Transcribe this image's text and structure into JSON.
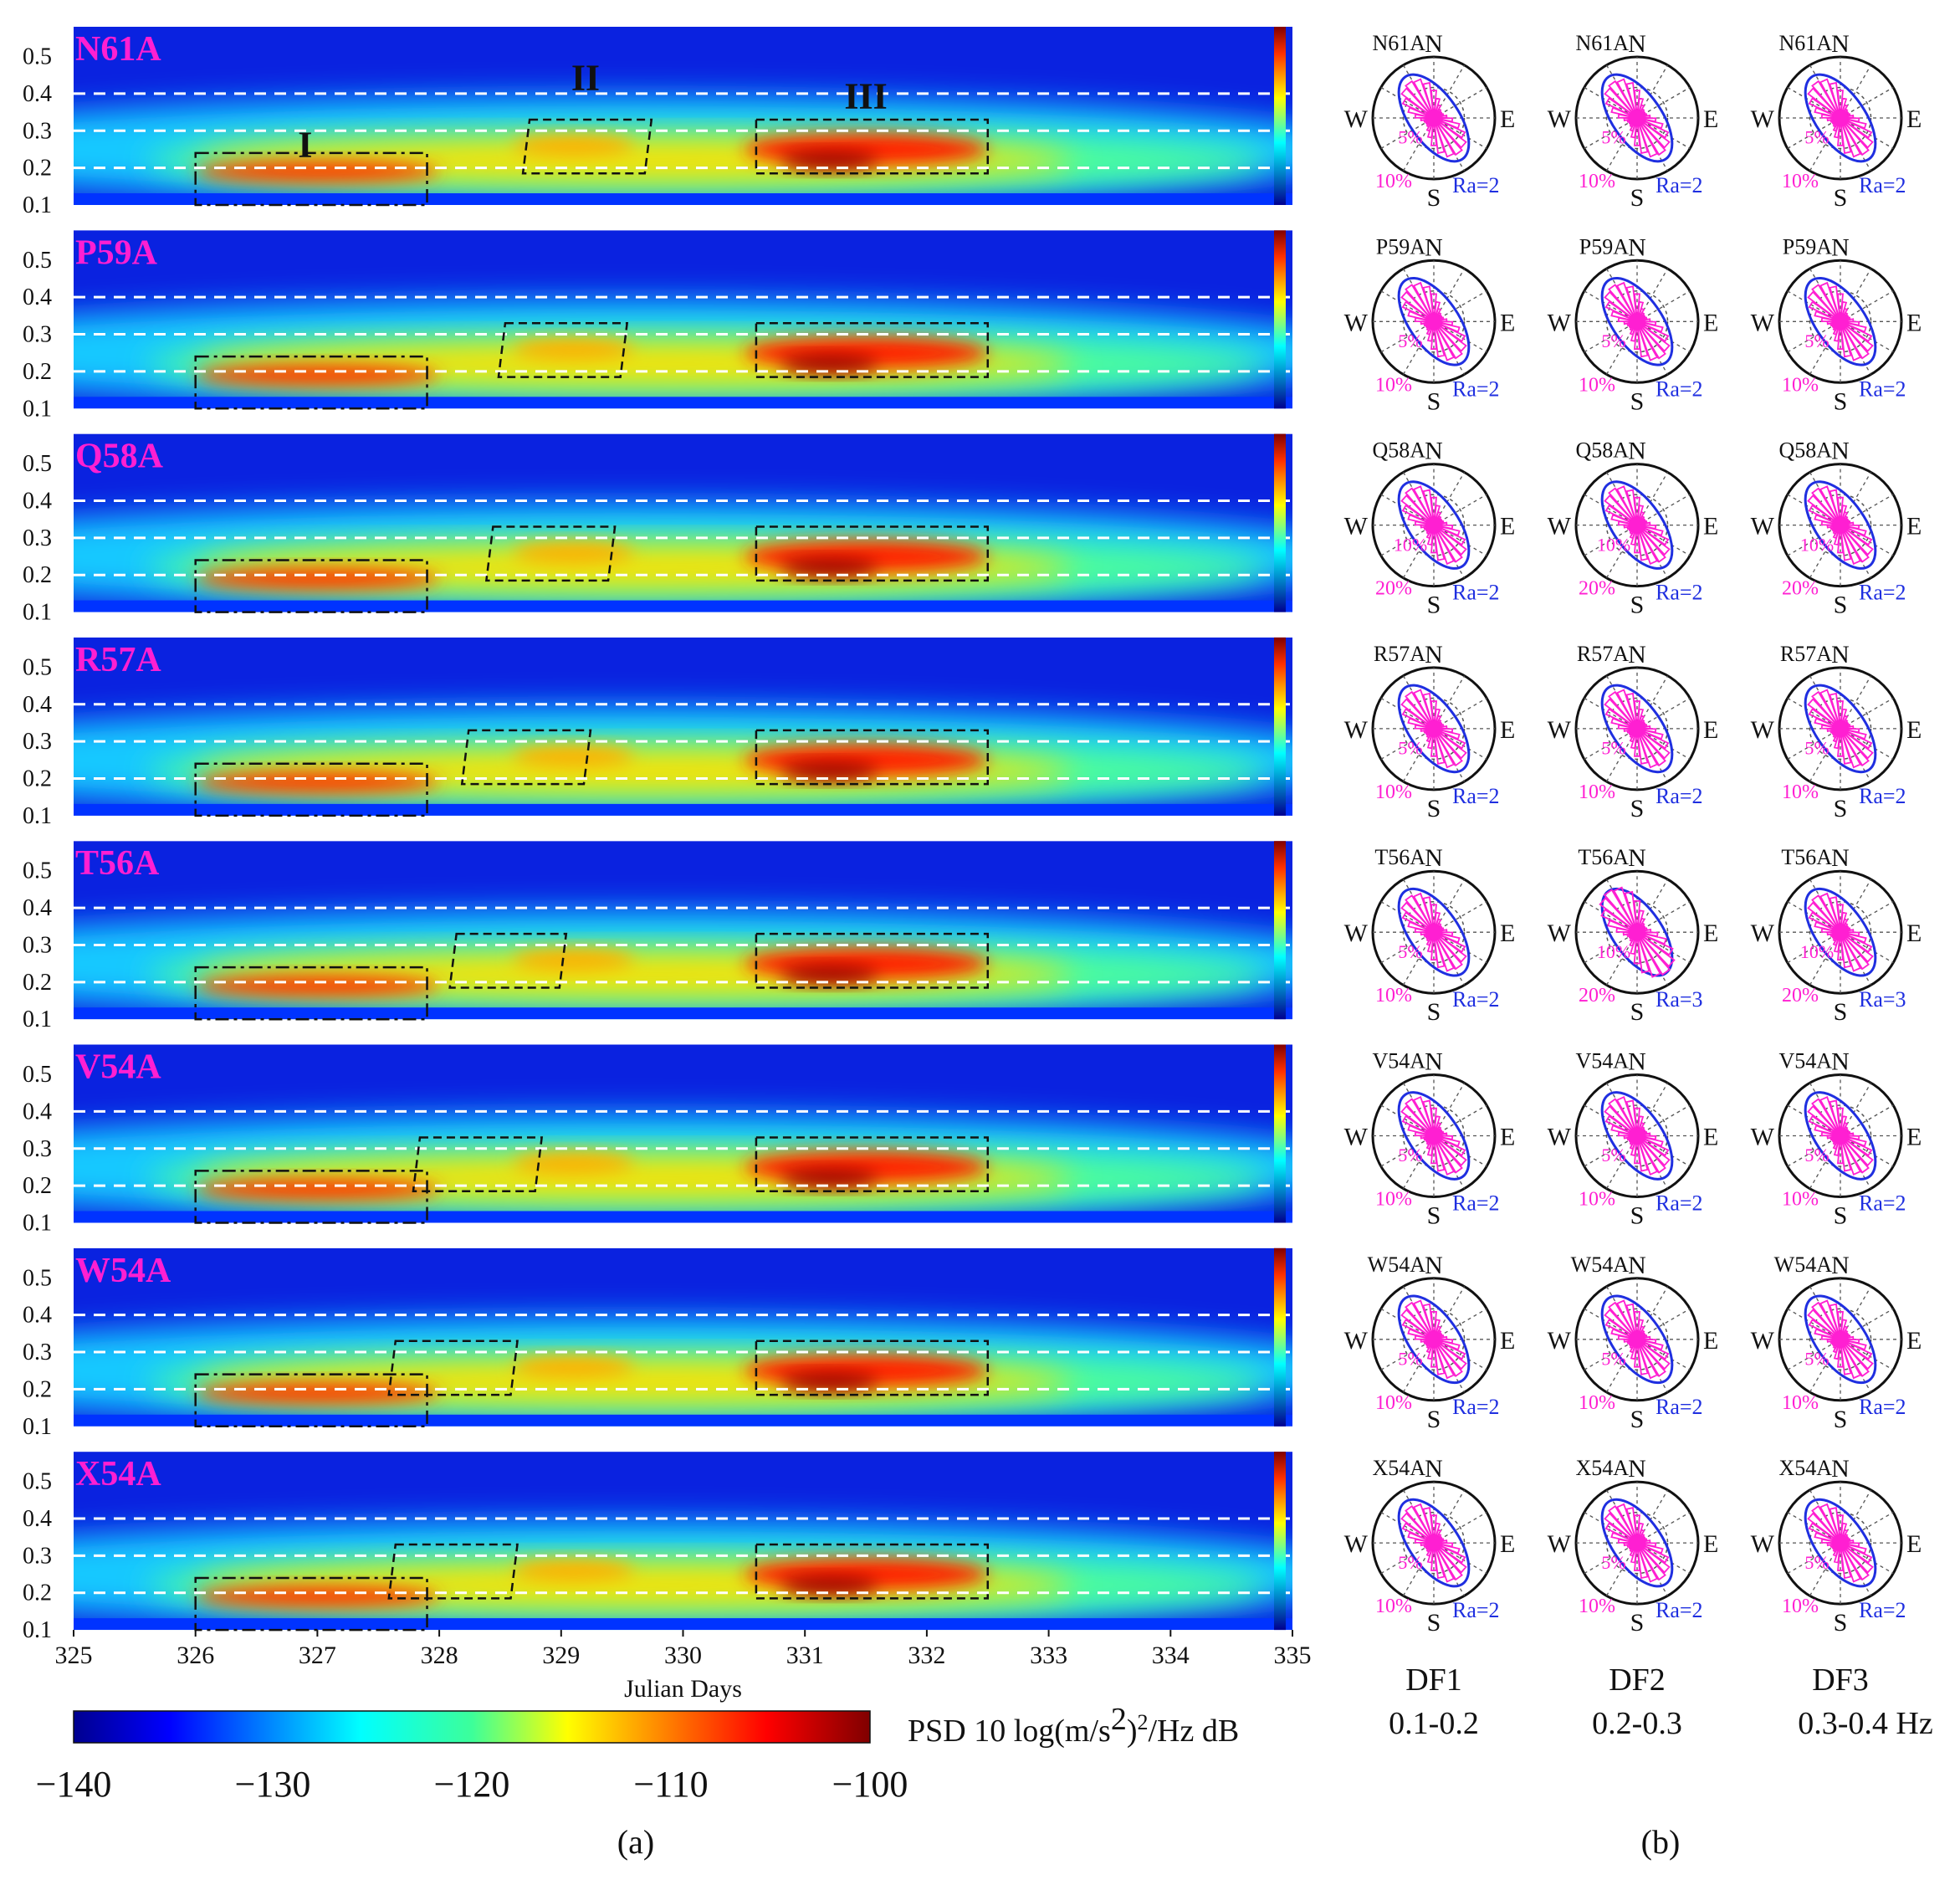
{
  "chart_data": {
    "type": "heatmap",
    "panel_a": {
      "label": "(a)",
      "xlabel": "Julian Days",
      "x_ticks": [
        "325",
        "326",
        "327",
        "328",
        "329",
        "330",
        "331",
        "332",
        "333",
        "334",
        "335"
      ],
      "xlim": [
        325,
        335
      ],
      "ylim": [
        0.1,
        0.58
      ],
      "y_ticks": [
        "0.5",
        "0.4",
        "0.3",
        "0.2",
        "0.1"
      ],
      "guide_lines_hz": [
        0.2,
        0.3,
        0.4
      ],
      "stations": [
        "N61A",
        "P59A",
        "Q58A",
        "R57A",
        "T56A",
        "V54A",
        "W54A",
        "X54A"
      ],
      "colorbar": {
        "min": -140,
        "max": -100,
        "tick_labels": [
          "−140",
          "−130",
          "−120",
          "−110",
          "−100"
        ],
        "label_main": "PSD 10 log(m/s",
        "label_sup": "2",
        "label_tail": ")",
        "label_sup2": "2",
        "label_end": "/Hz dB"
      },
      "band_labels": [
        "I",
        "II",
        "III"
      ],
      "boxes": [
        {
          "station": "N61A",
          "II": [
            328.7,
            329.7
          ],
          "III": [
            330.6,
            332.5
          ]
        },
        {
          "station": "P59A",
          "II": [
            328.5,
            329.5
          ],
          "III": [
            330.6,
            332.5
          ]
        },
        {
          "station": "Q58A",
          "II": [
            328.4,
            329.4
          ],
          "III": [
            330.6,
            332.5
          ]
        },
        {
          "station": "R57A",
          "II": [
            328.2,
            329.2
          ],
          "III": [
            330.6,
            332.5
          ]
        },
        {
          "station": "T56A",
          "II": [
            328.1,
            329.0
          ],
          "III": [
            330.6,
            332.5
          ]
        },
        {
          "station": "V54A",
          "II": [
            327.8,
            328.8
          ],
          "III": [
            330.6,
            332.5
          ]
        },
        {
          "station": "W54A",
          "II": [
            327.6,
            328.6
          ],
          "III": [
            330.6,
            332.5
          ]
        },
        {
          "station": "X54A",
          "II": [
            327.6,
            328.6
          ],
          "III": [
            330.6,
            332.5
          ]
        }
      ],
      "band_I_days": [
        326.0,
        327.9
      ]
    },
    "panel_b": {
      "label": "(b)",
      "columns": [
        {
          "name": "DF1",
          "band": "0.1-0.2"
        },
        {
          "name": "DF2",
          "band": "0.2-0.3"
        },
        {
          "name": "DF3",
          "band": "0.3-0.4 Hz"
        }
      ],
      "compass": {
        "n": "N",
        "s": "S",
        "e": "E",
        "w": "W"
      },
      "rows": [
        {
          "station": "N61A",
          "pct": [
            [
              "5%",
              "10%"
            ],
            [
              "5%",
              "10%"
            ],
            [
              "5%",
              "10%"
            ]
          ],
          "ra": [
            "Ra=2",
            "Ra=2",
            "Ra=2"
          ]
        },
        {
          "station": "P59A",
          "pct": [
            [
              "5%",
              "10%"
            ],
            [
              "5%",
              "10%"
            ],
            [
              "5%",
              "10%"
            ]
          ],
          "ra": [
            "Ra=2",
            "Ra=2",
            "Ra=2"
          ]
        },
        {
          "station": "Q58A",
          "pct": [
            [
              "10%",
              "20%"
            ],
            [
              "10%",
              "20%"
            ],
            [
              "10%",
              "20%"
            ]
          ],
          "ra": [
            "Ra=2",
            "Ra=2",
            "Ra=2"
          ]
        },
        {
          "station": "R57A",
          "pct": [
            [
              "5%",
              "10%"
            ],
            [
              "5%",
              "10%"
            ],
            [
              "5%",
              "10%"
            ]
          ],
          "ra": [
            "Ra=2",
            "Ra=2",
            "Ra=2"
          ]
        },
        {
          "station": "T56A",
          "pct": [
            [
              "5%",
              "10%"
            ],
            [
              "10%",
              "20%"
            ],
            [
              "10%",
              "20%"
            ]
          ],
          "ra": [
            "Ra=2",
            "Ra=3",
            "Ra=3"
          ]
        },
        {
          "station": "V54A",
          "pct": [
            [
              "5%",
              "10%"
            ],
            [
              "5%",
              "10%"
            ],
            [
              "5%",
              "10%"
            ]
          ],
          "ra": [
            "Ra=2",
            "Ra=2",
            "Ra=2"
          ]
        },
        {
          "station": "W54A",
          "pct": [
            [
              "5%",
              "10%"
            ],
            [
              "5%",
              "10%"
            ],
            [
              "5%",
              "10%"
            ]
          ],
          "ra": [
            "Ra=2",
            "Ra=2",
            "Ra=2"
          ]
        },
        {
          "station": "X54A",
          "pct": [
            [
              "5%",
              "10%"
            ],
            [
              "5%",
              "10%"
            ],
            [
              "5%",
              "10%"
            ]
          ],
          "ra": [
            "Ra=2",
            "Ra=2",
            "Ra=2"
          ]
        }
      ]
    },
    "colors": {
      "station_label": "#ff1fd2",
      "rose": "#ff1fd2",
      "ellipse": "#1f2fe0",
      "guide": "#ffffff",
      "box": "#111111"
    }
  }
}
